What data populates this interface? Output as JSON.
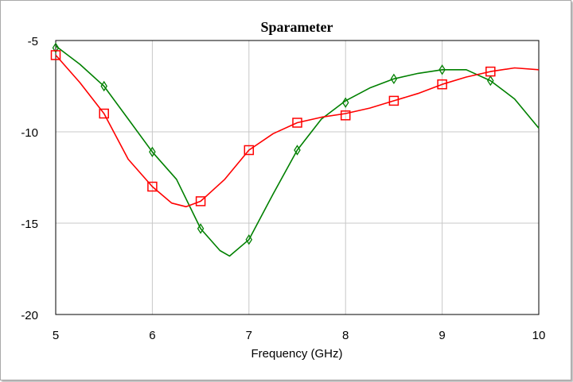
{
  "chart_data": {
    "type": "line",
    "title": "Sparameter",
    "xlabel": "Frequency (GHz)",
    "ylabel": "",
    "xlim": [
      5,
      10
    ],
    "ylim": [
      -20,
      -5
    ],
    "xticks": [
      5,
      6,
      7,
      8,
      9,
      10
    ],
    "yticks": [
      -5,
      -10,
      -15,
      -20
    ],
    "grid": true,
    "series": [
      {
        "color": "#008000",
        "marker": "diamond",
        "x": [
          5.0,
          5.25,
          5.5,
          5.75,
          6.0,
          6.25,
          6.5,
          6.7,
          6.8,
          7.0,
          7.25,
          7.5,
          7.75,
          8.0,
          8.25,
          8.5,
          8.75,
          9.0,
          9.25,
          9.5,
          9.75,
          10.0
        ],
        "y": [
          -5.3,
          -6.3,
          -7.5,
          -9.3,
          -11.1,
          -12.6,
          -15.3,
          -16.5,
          -16.8,
          -15.9,
          -13.4,
          -11.0,
          -9.3,
          -8.3,
          -7.6,
          -7.1,
          -6.8,
          -6.6,
          -6.6,
          -7.2,
          -8.2,
          -9.8
        ],
        "markers_x": [
          5.0,
          5.5,
          6.0,
          6.5,
          7.0,
          7.5,
          8.0,
          8.5,
          9.0,
          9.5
        ],
        "markers_y": [
          -5.4,
          -7.5,
          -11.1,
          -15.3,
          -15.9,
          -11.0,
          -8.4,
          -7.1,
          -6.6,
          -7.2
        ]
      },
      {
        "color": "#ff0000",
        "marker": "square",
        "x": [
          5.0,
          5.25,
          5.5,
          5.75,
          6.0,
          6.2,
          6.35,
          6.5,
          6.75,
          7.0,
          7.25,
          7.5,
          7.75,
          8.0,
          8.25,
          8.5,
          8.75,
          9.0,
          9.25,
          9.5,
          9.75,
          10.0
        ],
        "y": [
          -5.8,
          -7.3,
          -9.0,
          -11.5,
          -13.0,
          -13.9,
          -14.1,
          -13.8,
          -12.6,
          -11.0,
          -10.1,
          -9.5,
          -9.2,
          -9.0,
          -8.7,
          -8.3,
          -7.9,
          -7.4,
          -7.0,
          -6.7,
          -6.5,
          -6.6
        ],
        "markers_x": [
          5.0,
          5.5,
          6.0,
          6.5,
          7.0,
          7.5,
          8.0,
          8.5,
          9.0,
          9.5
        ],
        "markers_y": [
          -5.8,
          -9.0,
          -13.0,
          -13.8,
          -11.0,
          -9.5,
          -9.1,
          -8.3,
          -7.4,
          -6.7
        ]
      }
    ]
  }
}
